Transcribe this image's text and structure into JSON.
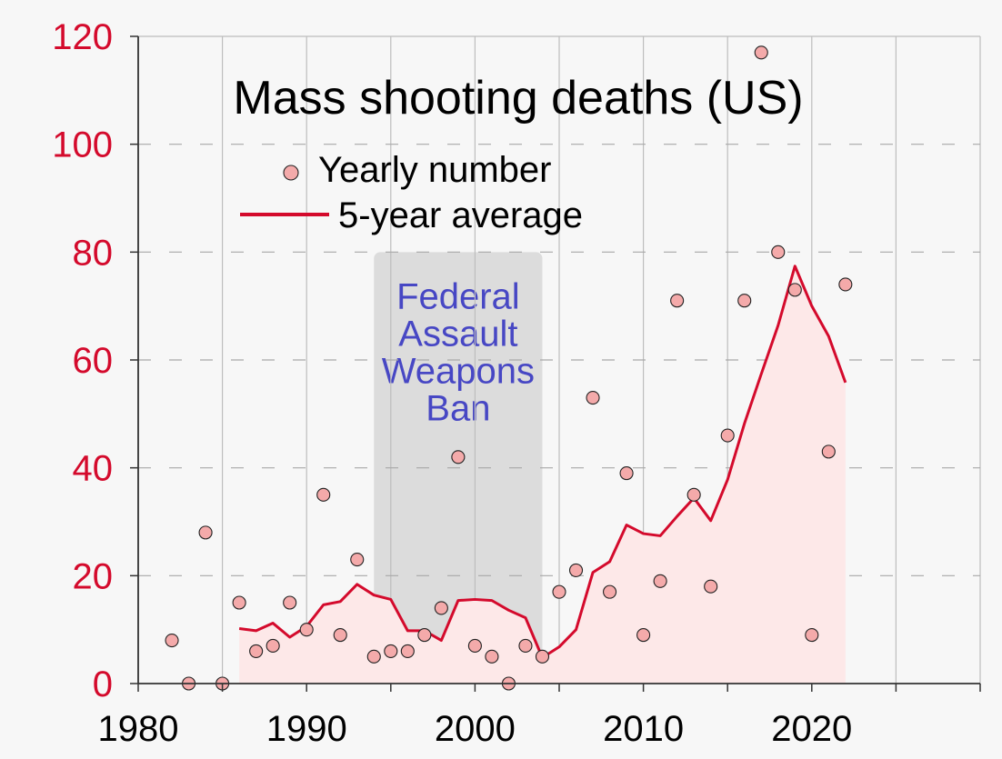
{
  "chart_data": {
    "type": "scatter",
    "title": "Mass shooting deaths (US)",
    "xlabel": "",
    "ylabel": "",
    "xlim": [
      1980,
      2030
    ],
    "ylim": [
      0,
      120
    ],
    "x_ticks": [
      "1980",
      "1990",
      "2000",
      "2010",
      "2020"
    ],
    "x_tick_values": [
      1980,
      1990,
      2000,
      2010,
      2020
    ],
    "y_ticks": [
      "0",
      "20",
      "40",
      "60",
      "80",
      "100",
      "120"
    ],
    "y_tick_values": [
      0,
      20,
      40,
      60,
      80,
      100,
      120
    ],
    "x_gridlines": [
      1980,
      1985,
      1990,
      1995,
      2000,
      2005,
      2010,
      2015,
      2020,
      2025,
      2030
    ],
    "grid": true,
    "legend_position": "top-center",
    "series": [
      {
        "name": "Yearly number",
        "kind": "scatter",
        "color": "#f4aaaa",
        "points": [
          [
            1982,
            8
          ],
          [
            1983,
            0
          ],
          [
            1984,
            28
          ],
          [
            1985,
            0
          ],
          [
            1986,
            15
          ],
          [
            1987,
            6
          ],
          [
            1988,
            7
          ],
          [
            1989,
            15
          ],
          [
            1990,
            10
          ],
          [
            1991,
            35
          ],
          [
            1992,
            9
          ],
          [
            1993,
            23
          ],
          [
            1994,
            5
          ],
          [
            1995,
            6
          ],
          [
            1996,
            6
          ],
          [
            1997,
            9
          ],
          [
            1998,
            14
          ],
          [
            1999,
            42
          ],
          [
            2000,
            7
          ],
          [
            2001,
            5
          ],
          [
            2002,
            0
          ],
          [
            2003,
            7
          ],
          [
            2004,
            5
          ],
          [
            2005,
            17
          ],
          [
            2006,
            21
          ],
          [
            2007,
            53
          ],
          [
            2008,
            17
          ],
          [
            2009,
            39
          ],
          [
            2010,
            9
          ],
          [
            2011,
            19
          ],
          [
            2012,
            71
          ],
          [
            2013,
            35
          ],
          [
            2014,
            18
          ],
          [
            2015,
            46
          ],
          [
            2016,
            71
          ],
          [
            2017,
            117
          ],
          [
            2018,
            80
          ],
          [
            2019,
            73
          ],
          [
            2020,
            9
          ],
          [
            2021,
            43
          ],
          [
            2022,
            74
          ]
        ]
      },
      {
        "name": "5-year average",
        "kind": "line",
        "color": "#d40a2c",
        "fill": "#fde8e8",
        "points": [
          [
            1986,
            10.2
          ],
          [
            1987,
            9.8
          ],
          [
            1988,
            11.2
          ],
          [
            1989,
            8.6
          ],
          [
            1990,
            10.6
          ],
          [
            1991,
            14.6
          ],
          [
            1992,
            15.2
          ],
          [
            1993,
            18.4
          ],
          [
            1994,
            16.4
          ],
          [
            1995,
            15.6
          ],
          [
            1996,
            9.8
          ],
          [
            1997,
            9.8
          ],
          [
            1998,
            8.0
          ],
          [
            1999,
            15.4
          ],
          [
            2000,
            15.6
          ],
          [
            2001,
            15.4
          ],
          [
            2002,
            13.6
          ],
          [
            2003,
            12.2
          ],
          [
            2004,
            4.8
          ],
          [
            2005,
            6.8
          ],
          [
            2006,
            10.0
          ],
          [
            2007,
            20.6
          ],
          [
            2008,
            22.6
          ],
          [
            2009,
            29.4
          ],
          [
            2010,
            27.8
          ],
          [
            2011,
            27.4
          ],
          [
            2012,
            31.0
          ],
          [
            2013,
            34.4
          ],
          [
            2014,
            30.2
          ],
          [
            2015,
            37.8
          ],
          [
            2016,
            48.2
          ],
          [
            2017,
            57.4
          ],
          [
            2018,
            66.4
          ],
          [
            2019,
            77.4
          ],
          [
            2020,
            70.0
          ],
          [
            2021,
            64.4
          ],
          [
            2022,
            55.8
          ]
        ]
      }
    ],
    "annotations": [
      {
        "name": "assault-weapons-ban",
        "lines": [
          "Federal",
          "Assault",
          "Weapons",
          "Ban"
        ],
        "x_start": 1994,
        "x_end": 2004,
        "y_top": 80,
        "text_color": "#4747c4",
        "fill": "#dcdcdc"
      }
    ],
    "colors": {
      "y_tick_labels": "#d40a2c",
      "x_tick_labels": "#000000",
      "background": "#f7f7f7"
    }
  }
}
